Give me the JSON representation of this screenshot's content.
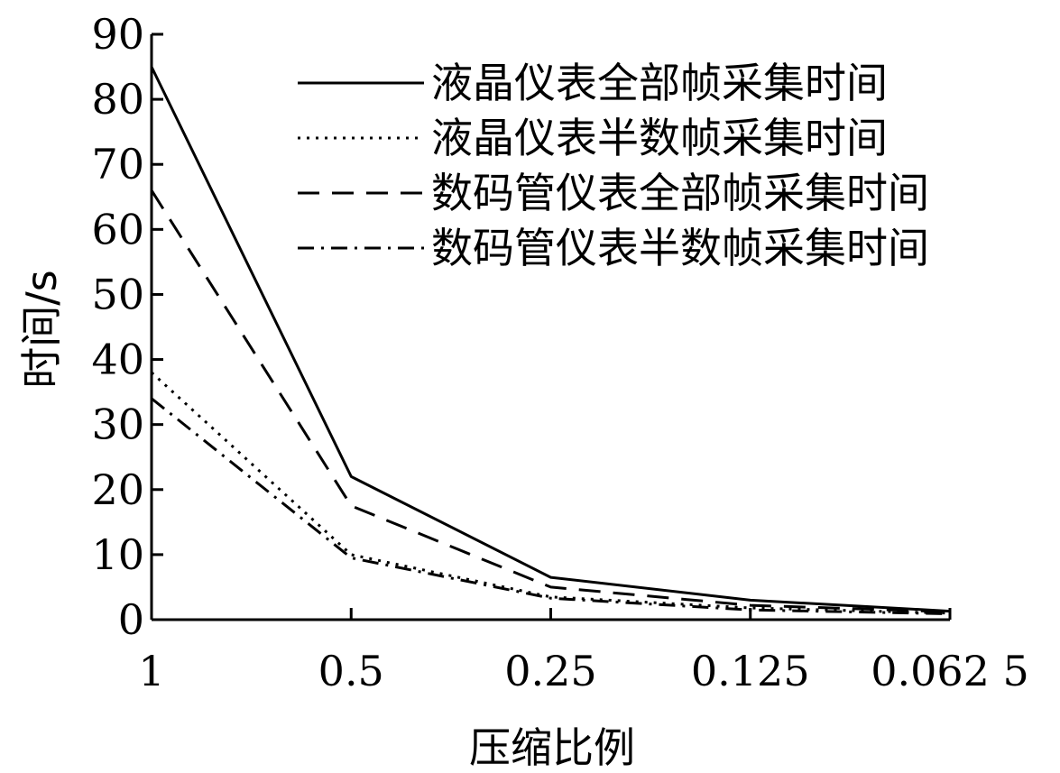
{
  "chart_data": {
    "type": "line",
    "title": "",
    "xlabel": "压缩比例",
    "ylabel": "时间/s",
    "categories": [
      "1",
      "0.5",
      "0.25",
      "0.125",
      "0.062 5"
    ],
    "ylim": [
      0,
      90
    ],
    "yticks": [
      "0",
      "10",
      "20",
      "30",
      "40",
      "50",
      "60",
      "70",
      "80",
      "90"
    ],
    "grid": false,
    "legend_position": "top-right",
    "series": [
      {
        "name": "液晶仪表全部帧采集时间",
        "values": [
          85,
          22,
          6.5,
          3,
          1.3
        ],
        "style": "solid",
        "color": "#000000"
      },
      {
        "name": "液晶仪表半数帧采集时间",
        "values": [
          38,
          10,
          3.5,
          1.8,
          1.0
        ],
        "style": "dotted",
        "color": "#000000"
      },
      {
        "name": "数码管仪表全部帧采集时间",
        "values": [
          66,
          17.5,
          5,
          2.2,
          1.2
        ],
        "style": "dashed",
        "color": "#000000"
      },
      {
        "name": "数码管仪表半数帧采集时间",
        "values": [
          34,
          9.5,
          3.3,
          1.5,
          0.9
        ],
        "style": "dashdot",
        "color": "#000000"
      }
    ]
  }
}
